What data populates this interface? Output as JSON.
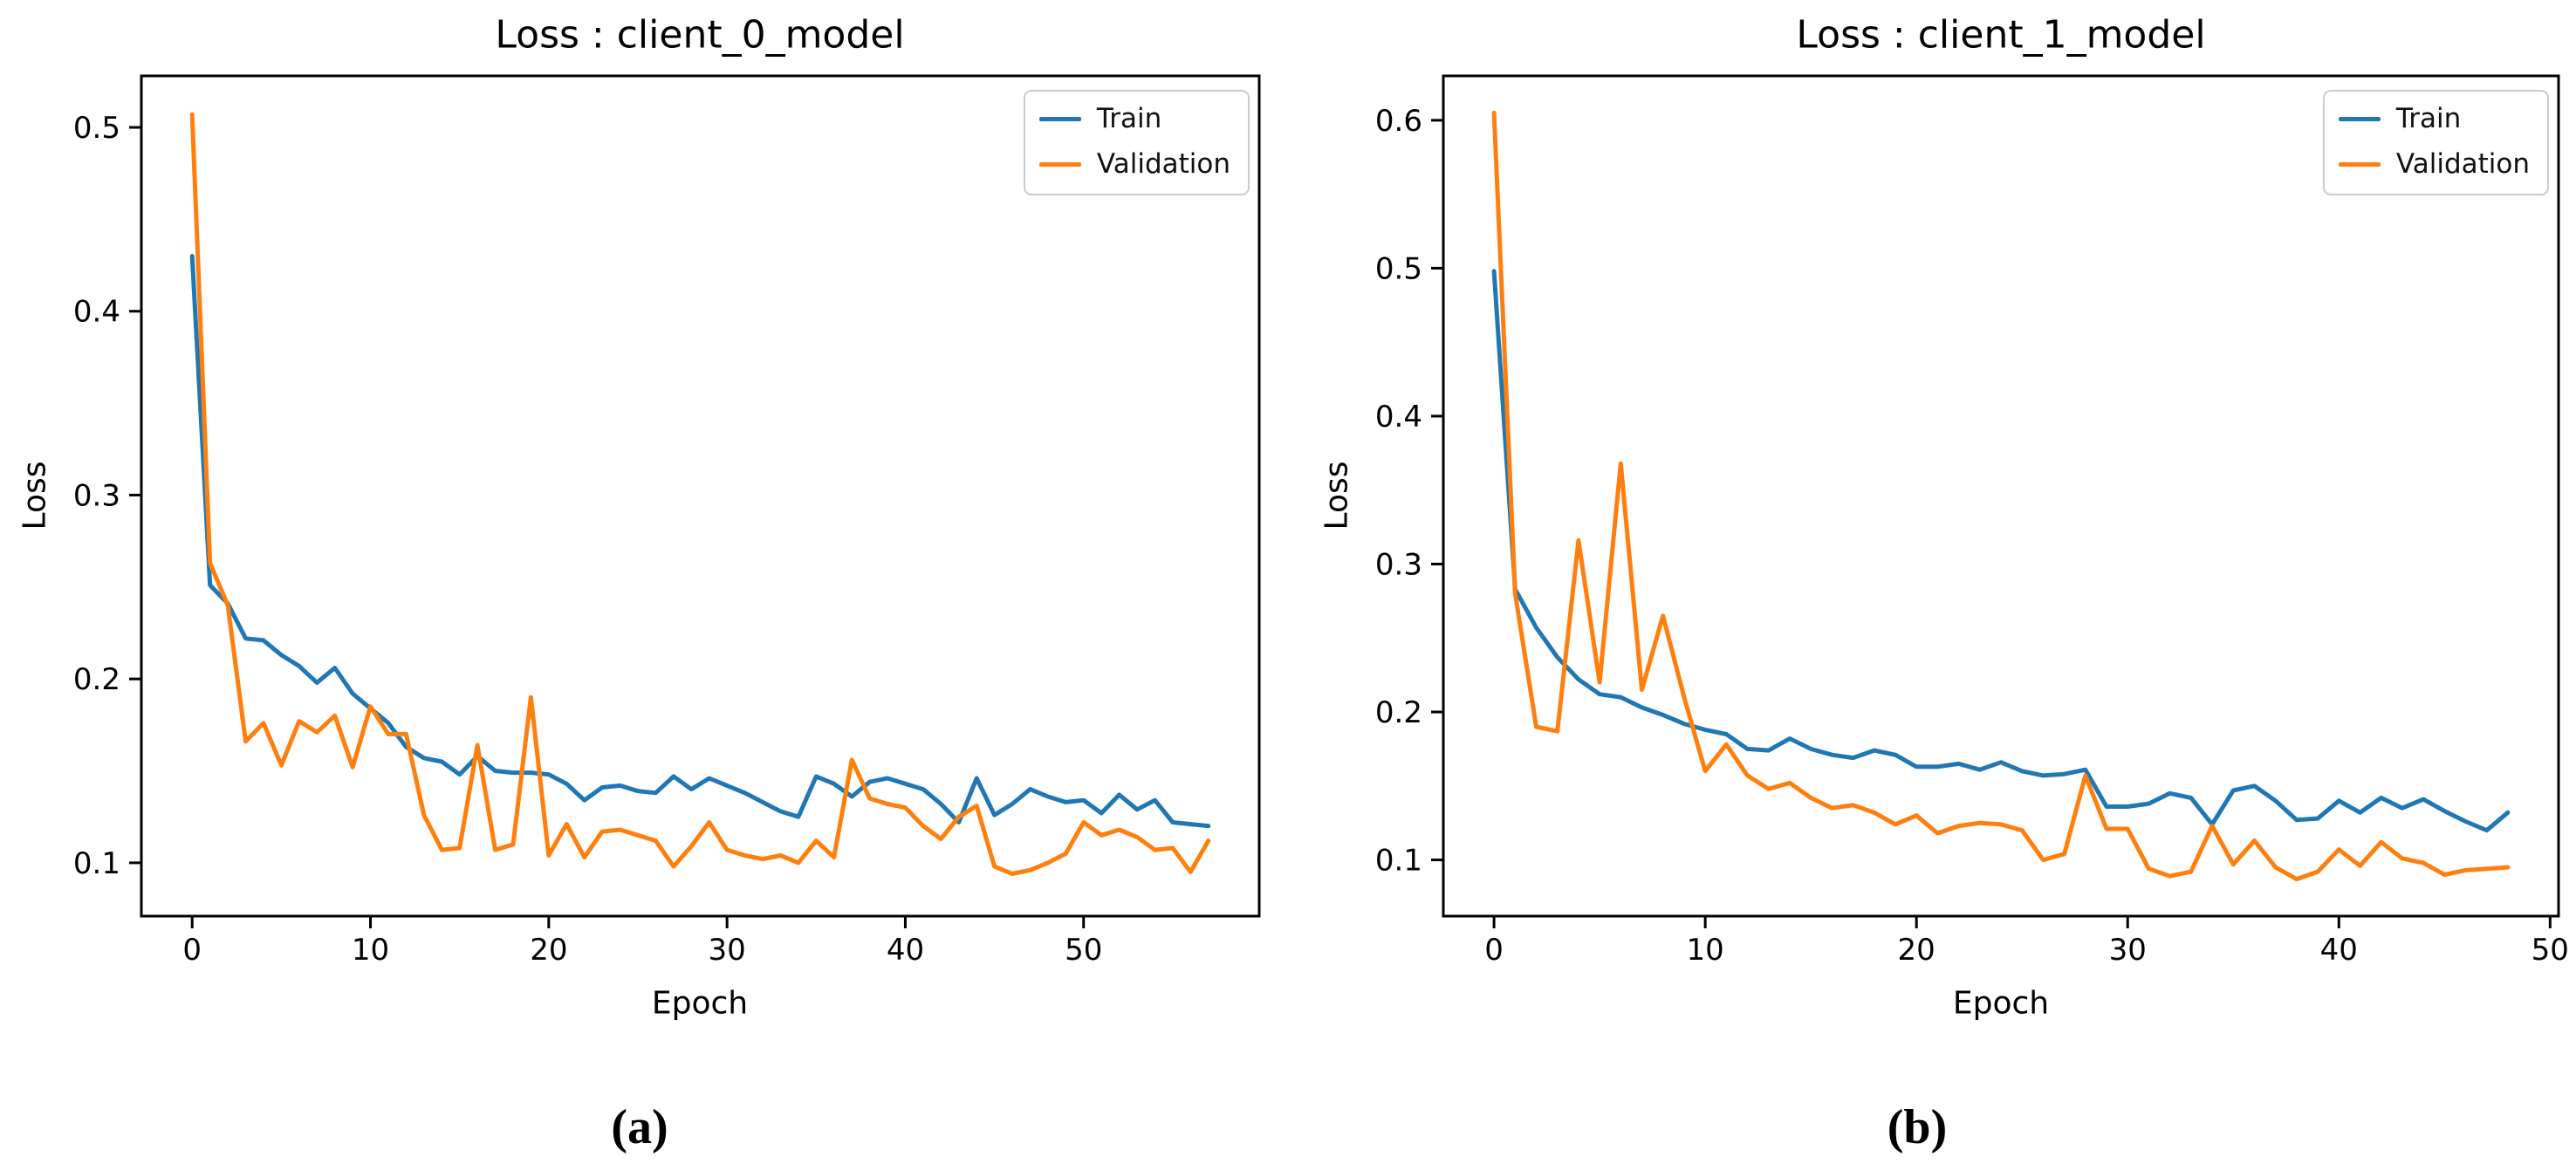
{
  "figure": {
    "background": "#ffffff",
    "captions": {
      "a": "(a)",
      "b": "(b)"
    }
  },
  "chart_data": [
    {
      "type": "line",
      "title": "Loss : client_0_model",
      "xlabel": "Epoch",
      "ylabel": "Loss",
      "legend_position": "upper right",
      "grid": false,
      "xlim": [
        -2.85,
        59.85
      ],
      "ylim": [
        0.071,
        0.528
      ],
      "xticks": [
        0,
        10,
        20,
        30,
        40,
        50
      ],
      "yticks": [
        0.1,
        0.2,
        0.3,
        0.4,
        0.5
      ],
      "x": [
        0,
        1,
        2,
        3,
        4,
        5,
        6,
        7,
        8,
        9,
        10,
        11,
        12,
        13,
        14,
        15,
        16,
        17,
        18,
        19,
        20,
        21,
        22,
        23,
        24,
        25,
        26,
        27,
        28,
        29,
        30,
        31,
        32,
        33,
        34,
        35,
        36,
        37,
        38,
        39,
        40,
        41,
        42,
        43,
        44,
        45,
        46,
        47,
        48,
        49,
        50,
        51,
        52,
        53,
        54,
        55,
        56,
        57
      ],
      "series": [
        {
          "name": "Train",
          "color": "#1f77b4",
          "values": [
            0.43,
            0.251,
            0.241,
            0.222,
            0.221,
            0.213,
            0.207,
            0.198,
            0.206,
            0.192,
            0.184,
            0.176,
            0.163,
            0.157,
            0.155,
            0.148,
            0.158,
            0.15,
            0.149,
            0.149,
            0.148,
            0.143,
            0.134,
            0.141,
            0.142,
            0.139,
            0.138,
            0.147,
            0.14,
            0.146,
            0.142,
            0.138,
            0.133,
            0.128,
            0.125,
            0.147,
            0.143,
            0.136,
            0.144,
            0.146,
            0.143,
            0.14,
            0.132,
            0.122,
            0.146,
            0.126,
            0.132,
            0.14,
            0.136,
            0.133,
            0.134,
            0.127,
            0.137,
            0.129,
            0.134,
            0.122,
            0.121,
            0.12
          ]
        },
        {
          "name": "Validation",
          "color": "#ff7f0e",
          "values": [
            0.507,
            0.263,
            0.24,
            0.166,
            0.176,
            0.153,
            0.177,
            0.171,
            0.18,
            0.152,
            0.185,
            0.17,
            0.17,
            0.126,
            0.107,
            0.108,
            0.164,
            0.107,
            0.11,
            0.19,
            0.104,
            0.121,
            0.103,
            0.117,
            0.118,
            0.115,
            0.112,
            0.098,
            0.109,
            0.122,
            0.107,
            0.104,
            0.102,
            0.104,
            0.1,
            0.112,
            0.103,
            0.156,
            0.135,
            0.132,
            0.13,
            0.12,
            0.113,
            0.125,
            0.131,
            0.098,
            0.094,
            0.096,
            0.1,
            0.105,
            0.122,
            0.115,
            0.118,
            0.114,
            0.107,
            0.108,
            0.095,
            0.112
          ]
        }
      ]
    },
    {
      "type": "line",
      "title": "Loss : client_1_model",
      "xlabel": "Epoch",
      "ylabel": "Loss",
      "legend_position": "upper right",
      "grid": false,
      "xlim": [
        -2.4,
        50.4
      ],
      "ylim": [
        0.062,
        0.63
      ],
      "xticks": [
        0,
        10,
        20,
        30,
        40,
        50
      ],
      "yticks": [
        0.1,
        0.2,
        0.3,
        0.4,
        0.5,
        0.6
      ],
      "x": [
        0,
        1,
        2,
        3,
        4,
        5,
        6,
        7,
        8,
        9,
        10,
        11,
        12,
        13,
        14,
        15,
        16,
        17,
        18,
        19,
        20,
        21,
        22,
        23,
        24,
        25,
        26,
        27,
        28,
        29,
        30,
        31,
        32,
        33,
        34,
        35,
        36,
        37,
        38,
        39,
        40,
        41,
        42,
        43,
        44,
        45,
        46,
        47,
        48
      ],
      "series": [
        {
          "name": "Train",
          "color": "#1f77b4",
          "values": [
            0.498,
            0.283,
            0.257,
            0.237,
            0.222,
            0.212,
            0.21,
            0.203,
            0.198,
            0.192,
            0.188,
            0.185,
            0.175,
            0.174,
            0.182,
            0.175,
            0.171,
            0.169,
            0.174,
            0.171,
            0.163,
            0.163,
            0.165,
            0.161,
            0.166,
            0.16,
            0.157,
            0.158,
            0.161,
            0.136,
            0.136,
            0.138,
            0.145,
            0.142,
            0.124,
            0.147,
            0.15,
            0.14,
            0.127,
            0.128,
            0.14,
            0.132,
            0.142,
            0.135,
            0.141,
            0.133,
            0.126,
            0.12,
            0.132
          ]
        },
        {
          "name": "Validation",
          "color": "#ff7f0e",
          "values": [
            0.605,
            0.28,
            0.19,
            0.187,
            0.316,
            0.22,
            0.368,
            0.215,
            0.265,
            0.21,
            0.16,
            0.178,
            0.157,
            0.148,
            0.152,
            0.142,
            0.135,
            0.137,
            0.132,
            0.124,
            0.13,
            0.118,
            0.123,
            0.125,
            0.124,
            0.12,
            0.1,
            0.104,
            0.157,
            0.121,
            0.121,
            0.094,
            0.089,
            0.092,
            0.123,
            0.097,
            0.113,
            0.095,
            0.087,
            0.092,
            0.107,
            0.096,
            0.112,
            0.101,
            0.098,
            0.09,
            0.093,
            0.094,
            0.095
          ]
        }
      ]
    }
  ]
}
